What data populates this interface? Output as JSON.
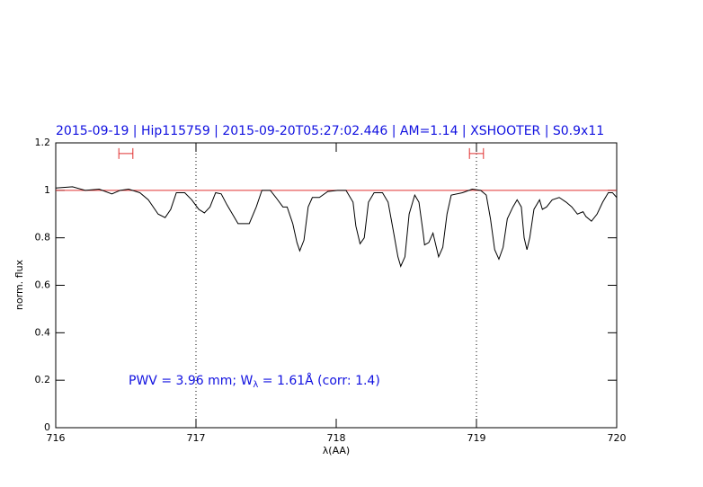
{
  "chart_data": {
    "type": "line",
    "title": "2015-09-19 | Hip115759 | 2015-09-20T05:27:02.446 | AM=1.14 | XSHOOTER | S0.9x11",
    "xlabel": "λ(AA)",
    "ylabel": "norm. flux",
    "annotation": [
      "PWV = 3.96 mm; W",
      "λ",
      " = 1.61Å  (corr: 1.4)"
    ],
    "x": [
      716.0,
      716.12,
      716.21,
      716.31,
      716.4,
      716.46,
      716.52,
      716.6,
      716.66,
      716.73,
      716.78,
      716.82,
      716.86,
      716.92,
      716.97,
      717.02,
      717.06,
      717.1,
      717.14,
      717.18,
      717.22,
      717.26,
      717.3,
      717.35,
      717.38,
      717.43,
      717.47,
      717.53,
      717.57,
      717.62,
      717.65,
      717.69,
      717.72,
      717.74,
      717.77,
      717.8,
      717.83,
      717.88,
      717.94,
      718.01,
      718.07,
      718.12,
      718.14,
      718.17,
      718.2,
      718.23,
      718.27,
      718.33,
      718.37,
      718.41,
      718.44,
      718.46,
      718.49,
      718.52,
      718.56,
      718.59,
      718.62,
      718.63,
      718.66,
      718.69,
      718.71,
      718.73,
      718.76,
      718.79,
      718.82,
      718.9,
      718.97,
      719.03,
      719.07,
      719.1,
      719.13,
      719.16,
      719.19,
      719.22,
      719.26,
      719.29,
      719.32,
      719.34,
      719.36,
      719.38,
      719.41,
      719.45,
      719.47,
      719.5,
      719.54,
      719.59,
      719.64,
      719.68,
      719.72,
      719.76,
      719.78,
      719.82,
      719.86,
      719.9,
      719.94,
      719.97,
      720.0
    ],
    "series": [
      {
        "color": "#000000",
        "values": [
          1.01,
          1.015,
          1.0,
          1.005,
          0.985,
          1.0,
          1.005,
          0.99,
          0.96,
          0.9,
          0.885,
          0.92,
          0.99,
          0.99,
          0.96,
          0.92,
          0.905,
          0.93,
          0.99,
          0.985,
          0.94,
          0.9,
          0.86,
          0.86,
          0.86,
          0.93,
          1.0,
          1.0,
          0.97,
          0.93,
          0.93,
          0.86,
          0.78,
          0.745,
          0.79,
          0.93,
          0.97,
          0.97,
          0.995,
          1.0,
          1.0,
          0.95,
          0.85,
          0.775,
          0.8,
          0.95,
          0.99,
          0.99,
          0.95,
          0.82,
          0.72,
          0.68,
          0.72,
          0.9,
          0.98,
          0.95,
          0.82,
          0.77,
          0.78,
          0.82,
          0.77,
          0.72,
          0.76,
          0.9,
          0.98,
          0.99,
          1.005,
          1.0,
          0.98,
          0.88,
          0.75,
          0.71,
          0.76,
          0.88,
          0.93,
          0.96,
          0.93,
          0.8,
          0.75,
          0.8,
          0.92,
          0.96,
          0.92,
          0.93,
          0.96,
          0.97,
          0.95,
          0.93,
          0.9,
          0.91,
          0.89,
          0.87,
          0.9,
          0.95,
          0.99,
          0.99,
          0.97
        ]
      }
    ],
    "reference_line": {
      "y": 1,
      "color": "#e03030"
    },
    "intervals": [
      {
        "x": [
          716.45,
          716.55
        ],
        "y": 1.155,
        "color": "#e03030"
      },
      {
        "x": [
          718.95,
          719.05
        ],
        "y": 1.155,
        "color": "#e03030"
      }
    ],
    "vlines": [
      717,
      719
    ],
    "xlim": [
      716,
      720
    ],
    "xticks": [
      716,
      717,
      718,
      719,
      720
    ],
    "ylim": [
      0,
      1.2
    ],
    "yticks": [
      0,
      0.2,
      0.4,
      0.6,
      0.8,
      1,
      1.2
    ],
    "text_color": "#1010e0"
  }
}
